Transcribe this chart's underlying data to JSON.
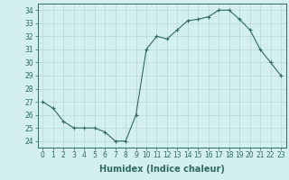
{
  "x": [
    0,
    1,
    2,
    3,
    4,
    5,
    6,
    7,
    8,
    9,
    10,
    11,
    12,
    13,
    14,
    15,
    16,
    17,
    18,
    19,
    20,
    21,
    22,
    23
  ],
  "y": [
    27,
    26.5,
    25.5,
    25,
    25,
    25,
    24.7,
    24,
    24,
    26,
    31,
    32,
    31.8,
    32.5,
    33.2,
    33.3,
    33.5,
    34,
    34,
    33.3,
    32.5,
    31,
    30,
    29
  ],
  "xlabel": "Humidex (Indice chaleur)",
  "ylim": [
    23.5,
    34.5
  ],
  "xlim": [
    -0.5,
    23.5
  ],
  "yticks": [
    24,
    25,
    26,
    27,
    28,
    29,
    30,
    31,
    32,
    33,
    34
  ],
  "xticks": [
    0,
    1,
    2,
    3,
    4,
    5,
    6,
    7,
    8,
    9,
    10,
    11,
    12,
    13,
    14,
    15,
    16,
    17,
    18,
    19,
    20,
    21,
    22,
    23
  ],
  "line_color": "#2e6b5e",
  "marker": "+",
  "bg_color": "#d4efef",
  "grid_color": "#b8d8d8",
  "tick_label_fontsize": 5.5,
  "xlabel_fontsize": 7
}
